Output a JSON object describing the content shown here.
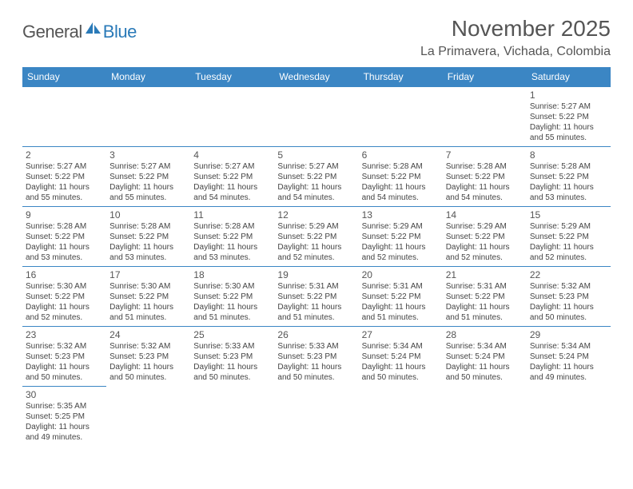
{
  "logo": {
    "text1": "General",
    "text2": "Blue",
    "icon_color": "#2a7ab8"
  },
  "header": {
    "month_title": "November 2025",
    "location": "La Primavera, Vichada, Colombia"
  },
  "colors": {
    "header_bg": "#3b86c4",
    "header_text": "#ffffff",
    "border": "#3b86c4",
    "text": "#444444"
  },
  "day_names": [
    "Sunday",
    "Monday",
    "Tuesday",
    "Wednesday",
    "Thursday",
    "Friday",
    "Saturday"
  ],
  "weeks": [
    [
      null,
      null,
      null,
      null,
      null,
      null,
      {
        "n": "1",
        "sr": "5:27 AM",
        "ss": "5:22 PM",
        "dl": "11 hours and 55 minutes."
      }
    ],
    [
      {
        "n": "2",
        "sr": "5:27 AM",
        "ss": "5:22 PM",
        "dl": "11 hours and 55 minutes."
      },
      {
        "n": "3",
        "sr": "5:27 AM",
        "ss": "5:22 PM",
        "dl": "11 hours and 55 minutes."
      },
      {
        "n": "4",
        "sr": "5:27 AM",
        "ss": "5:22 PM",
        "dl": "11 hours and 54 minutes."
      },
      {
        "n": "5",
        "sr": "5:27 AM",
        "ss": "5:22 PM",
        "dl": "11 hours and 54 minutes."
      },
      {
        "n": "6",
        "sr": "5:28 AM",
        "ss": "5:22 PM",
        "dl": "11 hours and 54 minutes."
      },
      {
        "n": "7",
        "sr": "5:28 AM",
        "ss": "5:22 PM",
        "dl": "11 hours and 54 minutes."
      },
      {
        "n": "8",
        "sr": "5:28 AM",
        "ss": "5:22 PM",
        "dl": "11 hours and 53 minutes."
      }
    ],
    [
      {
        "n": "9",
        "sr": "5:28 AM",
        "ss": "5:22 PM",
        "dl": "11 hours and 53 minutes."
      },
      {
        "n": "10",
        "sr": "5:28 AM",
        "ss": "5:22 PM",
        "dl": "11 hours and 53 minutes."
      },
      {
        "n": "11",
        "sr": "5:28 AM",
        "ss": "5:22 PM",
        "dl": "11 hours and 53 minutes."
      },
      {
        "n": "12",
        "sr": "5:29 AM",
        "ss": "5:22 PM",
        "dl": "11 hours and 52 minutes."
      },
      {
        "n": "13",
        "sr": "5:29 AM",
        "ss": "5:22 PM",
        "dl": "11 hours and 52 minutes."
      },
      {
        "n": "14",
        "sr": "5:29 AM",
        "ss": "5:22 PM",
        "dl": "11 hours and 52 minutes."
      },
      {
        "n": "15",
        "sr": "5:29 AM",
        "ss": "5:22 PM",
        "dl": "11 hours and 52 minutes."
      }
    ],
    [
      {
        "n": "16",
        "sr": "5:30 AM",
        "ss": "5:22 PM",
        "dl": "11 hours and 52 minutes."
      },
      {
        "n": "17",
        "sr": "5:30 AM",
        "ss": "5:22 PM",
        "dl": "11 hours and 51 minutes."
      },
      {
        "n": "18",
        "sr": "5:30 AM",
        "ss": "5:22 PM",
        "dl": "11 hours and 51 minutes."
      },
      {
        "n": "19",
        "sr": "5:31 AM",
        "ss": "5:22 PM",
        "dl": "11 hours and 51 minutes."
      },
      {
        "n": "20",
        "sr": "5:31 AM",
        "ss": "5:22 PM",
        "dl": "11 hours and 51 minutes."
      },
      {
        "n": "21",
        "sr": "5:31 AM",
        "ss": "5:22 PM",
        "dl": "11 hours and 51 minutes."
      },
      {
        "n": "22",
        "sr": "5:32 AM",
        "ss": "5:23 PM",
        "dl": "11 hours and 50 minutes."
      }
    ],
    [
      {
        "n": "23",
        "sr": "5:32 AM",
        "ss": "5:23 PM",
        "dl": "11 hours and 50 minutes."
      },
      {
        "n": "24",
        "sr": "5:32 AM",
        "ss": "5:23 PM",
        "dl": "11 hours and 50 minutes."
      },
      {
        "n": "25",
        "sr": "5:33 AM",
        "ss": "5:23 PM",
        "dl": "11 hours and 50 minutes."
      },
      {
        "n": "26",
        "sr": "5:33 AM",
        "ss": "5:23 PM",
        "dl": "11 hours and 50 minutes."
      },
      {
        "n": "27",
        "sr": "5:34 AM",
        "ss": "5:24 PM",
        "dl": "11 hours and 50 minutes."
      },
      {
        "n": "28",
        "sr": "5:34 AM",
        "ss": "5:24 PM",
        "dl": "11 hours and 50 minutes."
      },
      {
        "n": "29",
        "sr": "5:34 AM",
        "ss": "5:24 PM",
        "dl": "11 hours and 49 minutes."
      }
    ],
    [
      {
        "n": "30",
        "sr": "5:35 AM",
        "ss": "5:25 PM",
        "dl": "11 hours and 49 minutes."
      },
      null,
      null,
      null,
      null,
      null,
      null
    ]
  ],
  "labels": {
    "sunrise": "Sunrise: ",
    "sunset": "Sunset: ",
    "daylight": "Daylight: "
  }
}
